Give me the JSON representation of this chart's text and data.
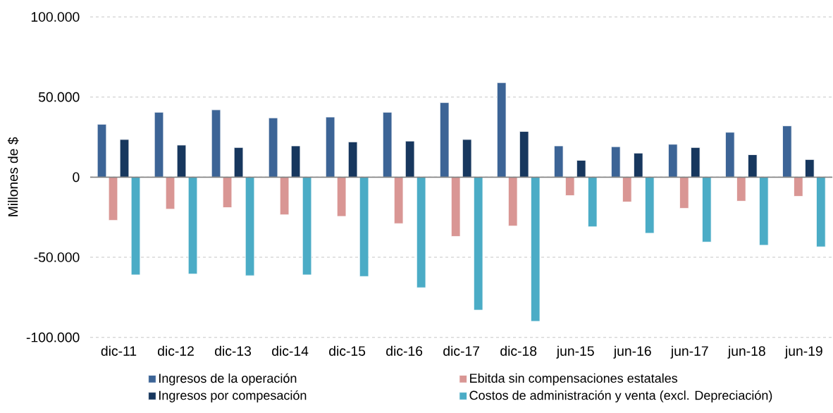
{
  "chart_data": {
    "type": "bar",
    "ylabel": "Millones de $",
    "categories": [
      "dic-11",
      "dic-12",
      "dic-13",
      "dic-14",
      "dic-15",
      "dic-16",
      "dic-17",
      "dic-18",
      "jun-15",
      "jun-16",
      "jun-17",
      "jun-18",
      "jun-19"
    ],
    "series": [
      {
        "name": "Ingresos de la operación",
        "color": "#3c6496",
        "values": [
          33000,
          40500,
          42000,
          37000,
          37500,
          40500,
          46500,
          59000,
          19500,
          19000,
          20500,
          28000,
          32000
        ]
      },
      {
        "name": "Ebitda sin compensaciones estatales",
        "color": "#d99694",
        "values": [
          -27000,
          -20000,
          -19000,
          -23500,
          -24500,
          -29000,
          -37000,
          -30500,
          -11500,
          -15500,
          -19500,
          -15000,
          -12000
        ]
      },
      {
        "name": "Ingresos por compesación",
        "color": "#17375e",
        "values": [
          23500,
          20000,
          18500,
          19500,
          22000,
          22500,
          23500,
          28500,
          10500,
          15000,
          18500,
          14000,
          11000
        ]
      },
      {
        "name": "Costos de administración y venta (excl. Depreciación)",
        "color": "#4bacc6",
        "values": [
          -61000,
          -60500,
          -61500,
          -61000,
          -62000,
          -69000,
          -83000,
          -90000,
          -31000,
          -35000,
          -40500,
          -42500,
          -43500
        ]
      }
    ],
    "ylim": [
      -100000,
      100000
    ],
    "yticks": [
      {
        "value": -100000,
        "label": "-100.000"
      },
      {
        "value": -50000,
        "label": "-50.000"
      },
      0,
      {
        "value": 50000,
        "label": "50.000"
      },
      {
        "value": 100000,
        "label": "100.000"
      }
    ],
    "grid": "y",
    "legend": "bottom"
  }
}
